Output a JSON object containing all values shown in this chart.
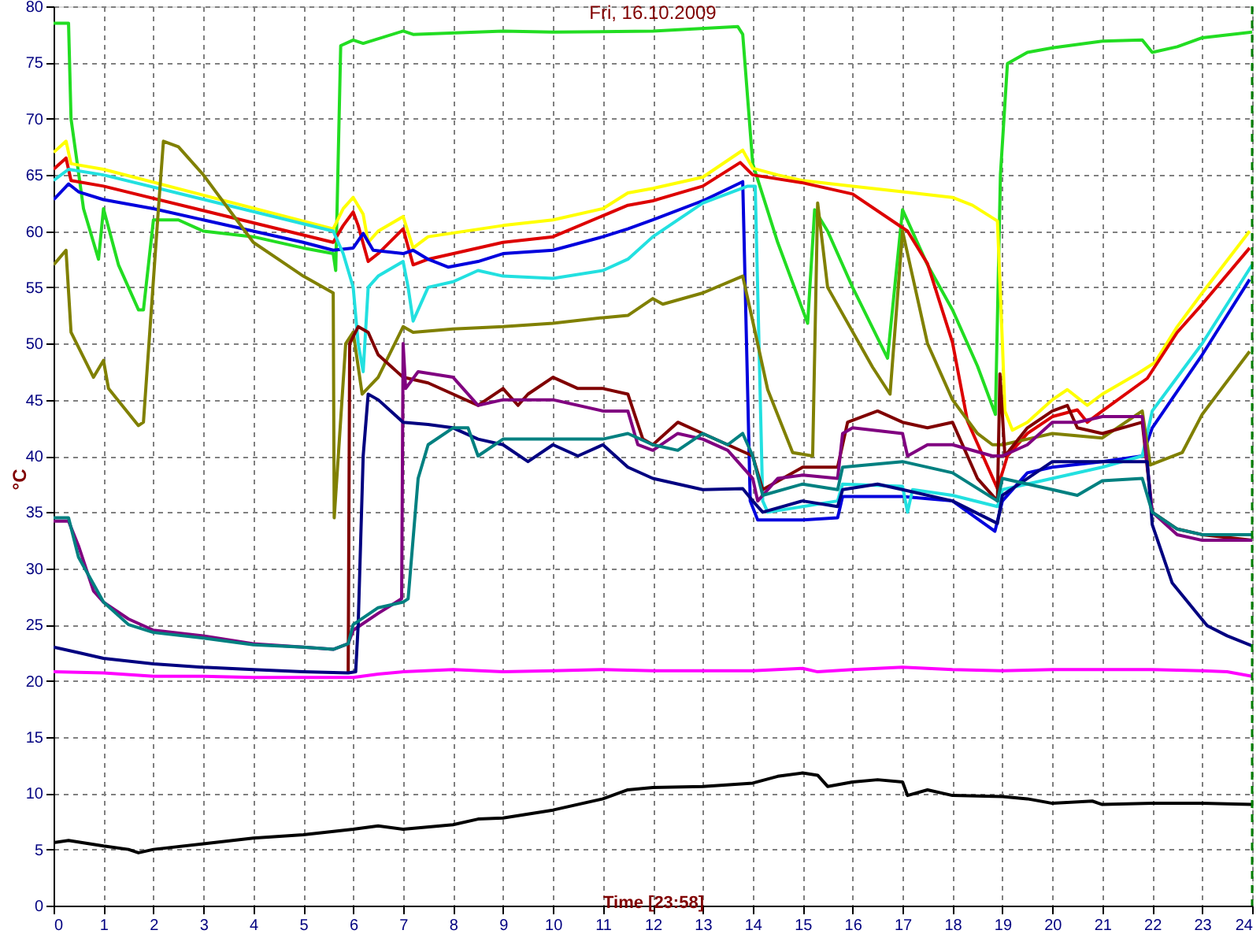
{
  "chart_data": {
    "type": "line",
    "title": "Fri, 16.10.2009",
    "xlabel": "Time [23:58]",
    "ylabel": "°C",
    "xlim": [
      0,
      24
    ],
    "xticks": [
      0,
      1,
      2,
      3,
      4,
      5,
      6,
      7,
      8,
      9,
      10,
      11,
      12,
      13,
      14,
      15,
      16,
      17,
      18,
      19,
      20,
      21,
      22,
      23,
      24
    ],
    "ylim": [
      0,
      80
    ],
    "yticks": [
      0,
      5,
      10,
      15,
      20,
      25,
      30,
      35,
      40,
      45,
      50,
      55,
      60,
      65,
      70,
      75,
      80
    ],
    "grid": true,
    "legend": false,
    "marker": "none",
    "line_style": "solid",
    "ref_lines": [
      {
        "axis": "x",
        "value": 24,
        "label": null,
        "color": "#008000",
        "line_style": "dashed"
      }
    ],
    "series": [
      {
        "color": "#22dd22",
        "x": [
          0,
          0.3,
          0.35,
          0.6,
          0.9,
          1.0,
          1.3,
          1.7,
          1.8,
          2.0,
          2.5,
          3,
          4,
          5,
          5.6,
          5.65,
          5.75,
          6,
          6.2,
          7,
          7.2,
          9,
          10,
          12,
          13.7,
          13.8,
          14,
          14.5,
          15.1,
          15.24,
          15.5,
          16,
          16.7,
          17.0,
          17.5,
          18,
          18.5,
          18.86,
          18.96,
          19.1,
          19.5,
          20,
          21,
          21.8,
          22,
          22.5,
          23,
          24
        ],
        "values": [
          78.5,
          78.5,
          70,
          62,
          57.5,
          62,
          57,
          53,
          53,
          61,
          61,
          60,
          59.5,
          58.5,
          58,
          56.5,
          76.5,
          77,
          76.7,
          77.8,
          77.5,
          77.8,
          77.7,
          77.8,
          78.2,
          77.5,
          66,
          59,
          51.8,
          61.9,
          60,
          55,
          48.7,
          61.9,
          57,
          53,
          48,
          43.7,
          65,
          74.9,
          75.9,
          76.3,
          76.9,
          77,
          75.9,
          76.4,
          77.2,
          77.7
        ]
      },
      {
        "color": "#ffff00",
        "x": [
          0,
          0.25,
          0.35,
          1,
          5.6,
          5.8,
          6,
          6.2,
          6.3,
          6.5,
          7,
          7.2,
          7.5,
          9,
          10,
          11,
          11.5,
          12,
          13,
          13.8,
          14,
          14.5,
          15,
          16,
          17,
          18,
          18.4,
          18.9,
          19,
          19.05,
          19.2,
          19.5,
          20,
          20.3,
          20.7,
          21,
          21.7,
          22.05,
          22.5,
          23,
          23.95
        ],
        "values": [
          67,
          68,
          66,
          65.5,
          60.2,
          62,
          63,
          61.5,
          59,
          60,
          61.3,
          58.5,
          59.5,
          60.5,
          61,
          62,
          63.4,
          63.8,
          64.8,
          67.2,
          65.6,
          65,
          64.5,
          64,
          63.5,
          63,
          62.3,
          60.9,
          50,
          44,
          42.3,
          43,
          45,
          45.9,
          44.5,
          45.5,
          47.3,
          48.3,
          51.5,
          54.5,
          60
        ]
      },
      {
        "color": "#dd0000",
        "x": [
          0,
          0.25,
          0.35,
          1,
          5.6,
          5.8,
          6,
          6.1,
          6.3,
          6.5,
          7,
          7.2,
          7.5,
          9,
          10,
          11.5,
          12,
          13,
          13.75,
          14,
          15,
          16,
          17.1,
          17.5,
          18,
          18.3,
          18.9,
          19.1,
          19.5,
          20,
          20.5,
          20.7,
          21,
          21.9,
          22.5,
          23,
          23.95
        ],
        "values": [
          65.5,
          66.5,
          64.5,
          64,
          59,
          60.5,
          61.7,
          60.5,
          57.3,
          58,
          60.2,
          57,
          57.5,
          59,
          59.5,
          62.3,
          62.7,
          64,
          66.1,
          65,
          64.3,
          63.3,
          60,
          57.1,
          50.1,
          43.1,
          37.1,
          40,
          42,
          43.5,
          44.1,
          43,
          44,
          46.9,
          51,
          53.5,
          58.5
        ]
      },
      {
        "color": "#0000dd",
        "x": [
          0,
          0.3,
          0.5,
          1,
          2,
          3,
          4,
          5,
          5.6,
          6,
          6.2,
          6.4,
          7,
          7.2,
          7.5,
          7.9,
          8.5,
          9,
          10,
          11,
          11.5,
          12,
          13,
          13.8,
          13.95,
          14.1,
          15,
          15.7,
          15.8,
          17,
          18,
          18.85,
          19,
          19.5,
          20,
          21,
          21.8,
          22,
          23,
          23.95
        ],
        "values": [
          62.8,
          64.2,
          63.5,
          62.8,
          62,
          61,
          60,
          59,
          58.3,
          58.5,
          59.8,
          58.3,
          58,
          58.3,
          57.5,
          56.8,
          57.3,
          58,
          58.3,
          59.5,
          60.2,
          61,
          62.7,
          64.4,
          36,
          34.3,
          34.3,
          34.5,
          36.4,
          36.4,
          36,
          33.3,
          36,
          38.5,
          39,
          39.5,
          40,
          42.5,
          49,
          55.7
        ]
      },
      {
        "color": "#22e0e0",
        "x": [
          0,
          0.3,
          1,
          5.6,
          5.8,
          6,
          6.1,
          6.2,
          6.3,
          6.5,
          7,
          7.1,
          7.2,
          7.3,
          7.5,
          8,
          8.5,
          9,
          10,
          11,
          11.5,
          12,
          13,
          13.9,
          14.05,
          14.2,
          14.3,
          15,
          15.7,
          15.8,
          17,
          17.1,
          17.2,
          18,
          18.9,
          19,
          20,
          21,
          21.8,
          22,
          23,
          24
        ],
        "values": [
          64.5,
          65.5,
          65,
          60,
          58,
          55,
          50,
          47.5,
          55,
          56,
          57.3,
          55,
          52,
          53,
          55,
          55.5,
          56.5,
          56,
          55.8,
          56.5,
          57.5,
          59.5,
          62.5,
          64,
          64,
          36,
          35,
          35.5,
          36,
          37.5,
          37.3,
          35,
          37,
          36.5,
          35.5,
          37,
          38,
          39,
          40,
          44,
          50,
          57
        ]
      },
      {
        "color": "#808000",
        "x": [
          0,
          0.25,
          0.35,
          0.8,
          1,
          1.1,
          1.7,
          1.8,
          2.1,
          2.2,
          2.5,
          3,
          3.5,
          4,
          4.5,
          5,
          5.6,
          5.62,
          5.85,
          6.0,
          6.18,
          6.5,
          7.0,
          7.2,
          8,
          9,
          10,
          11,
          11.5,
          12,
          12.2,
          13,
          13.8,
          14,
          14.3,
          14.8,
          15.2,
          15.3,
          15.5,
          16.4,
          16.75,
          17.0,
          17.2,
          17.5,
          18,
          18.5,
          18.8,
          19,
          19.5,
          20,
          21,
          21.8,
          21.96,
          22.6,
          23,
          23.95
        ],
        "values": [
          57,
          58.3,
          51,
          47,
          48.5,
          46,
          42.7,
          43,
          62,
          68,
          67.5,
          65,
          62,
          59,
          57.5,
          56,
          54.5,
          34.5,
          50,
          51,
          45.5,
          47,
          51.5,
          51,
          51.3,
          51.5,
          51.8,
          52.3,
          52.5,
          54,
          53.5,
          54.5,
          56,
          52,
          45.9,
          40.3,
          40,
          62.5,
          55,
          47.9,
          45.5,
          60,
          56,
          50,
          45,
          42,
          41,
          41,
          41.5,
          42,
          41.6,
          44,
          39.2,
          40.3,
          43.7,
          49.3
        ]
      },
      {
        "color": "#800000",
        "x": [
          5.9,
          5.93,
          6.1,
          6.3,
          6.5,
          7,
          7.5,
          8,
          8.5,
          9,
          9.3,
          9.5,
          10,
          10.5,
          11,
          11.5,
          11.8,
          12,
          12.5,
          13,
          13.5,
          14,
          14.2,
          15,
          15.7,
          15.9,
          16.5,
          17,
          17.5,
          18,
          18.5,
          18.9,
          18.95,
          19.05,
          19.5,
          20,
          20.3,
          20.5,
          21,
          21.8,
          22,
          22.5,
          23,
          24
        ],
        "values": [
          20.7,
          50,
          51.5,
          51,
          49,
          47,
          46.5,
          45.5,
          44.5,
          46,
          44.5,
          45.5,
          47,
          46,
          46,
          45.5,
          41.5,
          41,
          43,
          42,
          41,
          40,
          37,
          39,
          39,
          43,
          44,
          43,
          42.5,
          43,
          38,
          36,
          47.3,
          40,
          42.5,
          44,
          44.5,
          42.5,
          42,
          43,
          35,
          33.5,
          33,
          32.5
        ]
      },
      {
        "color": "#800080",
        "x": [
          0,
          0.3,
          0.5,
          0.8,
          1,
          1.5,
          2,
          3,
          4,
          5,
          5.6,
          5.9,
          6.0,
          6.5,
          6.97,
          7.0,
          7.05,
          7.3,
          8,
          8.5,
          9,
          10,
          11,
          11.5,
          11.7,
          12,
          12.5,
          13,
          13.5,
          14,
          14.1,
          14.5,
          15,
          15.7,
          15.8,
          16,
          17,
          17.1,
          17.5,
          18,
          18.8,
          19,
          19.5,
          20,
          20.5,
          21,
          21.8,
          22,
          22.5,
          23,
          24
        ],
        "values": [
          34.2,
          34.2,
          32,
          28,
          27,
          25.5,
          24.5,
          24,
          23.3,
          23,
          22.8,
          23.3,
          24.5,
          26,
          27.3,
          50,
          46,
          47.5,
          47,
          44.5,
          45,
          45,
          44,
          44,
          41,
          40.5,
          42,
          41.5,
          40.5,
          38,
          36,
          38,
          38.3,
          38,
          42,
          42.5,
          42,
          40,
          41,
          41,
          40,
          40,
          41,
          43,
          43,
          43.5,
          43.5,
          35,
          33,
          32.5,
          32.5
        ]
      },
      {
        "color": "#000080",
        "x": [
          0,
          0.5,
          1,
          2,
          3,
          4,
          5,
          5.9,
          6.05,
          6.1,
          6.2,
          6.3,
          6.5,
          7,
          7.5,
          8,
          8.5,
          9,
          9.5,
          10,
          10.5,
          11,
          11.5,
          12,
          13,
          13.8,
          14,
          14.2,
          15,
          15.7,
          15.8,
          16.5,
          17,
          18,
          18.9,
          19,
          19.5,
          20,
          21,
          21.9,
          22,
          22.4,
          23.1,
          23.5,
          24
        ],
        "values": [
          23,
          22.5,
          22,
          21.5,
          21.2,
          21,
          20.8,
          20.7,
          20.8,
          25,
          40,
          45.5,
          45,
          43,
          42.8,
          42.5,
          41.5,
          41,
          39.5,
          41,
          40,
          41,
          39,
          38,
          37,
          37.1,
          36,
          35,
          36,
          35.5,
          37,
          37.5,
          37,
          36,
          34,
          36.5,
          38,
          39.5,
          39.5,
          39.5,
          33.9,
          28.7,
          24.9,
          24,
          23.1
        ]
      },
      {
        "color": "#008080",
        "x": [
          0,
          0.3,
          0.5,
          1,
          1.5,
          2,
          3,
          4,
          5,
          5.6,
          5.9,
          6,
          6.5,
          7.0,
          7.1,
          7.3,
          7.5,
          8,
          8.3,
          8.5,
          9,
          10,
          11,
          11.5,
          12,
          12.5,
          13,
          13.5,
          13.8,
          14,
          14.2,
          15,
          15.7,
          15.8,
          17,
          18,
          18.9,
          19,
          20,
          20.5,
          21,
          21.8,
          22,
          22.5,
          23,
          24
        ],
        "values": [
          34.5,
          34.5,
          31,
          27,
          25,
          24.3,
          23.8,
          23.2,
          23,
          22.8,
          23.3,
          25,
          26.5,
          27,
          27.3,
          38,
          41,
          42.5,
          42.5,
          40,
          41.5,
          41.5,
          41.5,
          42,
          41,
          40.5,
          42,
          41,
          42,
          40,
          36.5,
          37.5,
          37,
          39,
          39.5,
          38.5,
          36,
          38,
          37,
          36.5,
          37.8,
          38,
          35,
          33.5,
          33,
          33
        ]
      },
      {
        "color": "#ff00ff",
        "x": [
          0,
          1,
          2,
          3,
          4,
          5,
          6,
          6.5,
          7,
          8,
          9,
          10,
          11,
          12,
          13,
          14,
          15,
          15.3,
          16,
          17,
          18,
          19,
          20,
          21,
          22,
          23,
          23.5,
          24
        ],
        "values": [
          20.8,
          20.7,
          20.4,
          20.4,
          20.3,
          20.3,
          20.3,
          20.6,
          20.8,
          21,
          20.8,
          20.9,
          21,
          20.9,
          20.9,
          20.9,
          21.1,
          20.8,
          21,
          21.2,
          21,
          20.9,
          21,
          21,
          21,
          20.9,
          20.8,
          20.4
        ]
      },
      {
        "color": "#000000",
        "x": [
          0,
          0.3,
          1,
          1.5,
          1.7,
          2,
          3,
          4,
          5,
          6,
          6.5,
          7,
          8,
          8.5,
          9,
          10,
          11,
          11.5,
          12,
          13,
          14,
          14.5,
          15,
          15.3,
          15.5,
          16,
          16.5,
          17,
          17.1,
          17.5,
          18,
          19,
          19.5,
          20,
          20.8,
          21,
          22,
          23,
          24
        ],
        "values": [
          5.6,
          5.8,
          5.3,
          5.0,
          4.7,
          5.0,
          5.5,
          6.0,
          6.3,
          6.8,
          7.1,
          6.8,
          7.2,
          7.7,
          7.8,
          8.5,
          9.5,
          10.3,
          10.5,
          10.6,
          10.9,
          11.5,
          11.8,
          11.6,
          10.6,
          11.0,
          11.2,
          11.0,
          9.8,
          10.3,
          9.8,
          9.7,
          9.5,
          9.1,
          9.3,
          9.0,
          9.1,
          9.1,
          9.0
        ]
      }
    ]
  }
}
